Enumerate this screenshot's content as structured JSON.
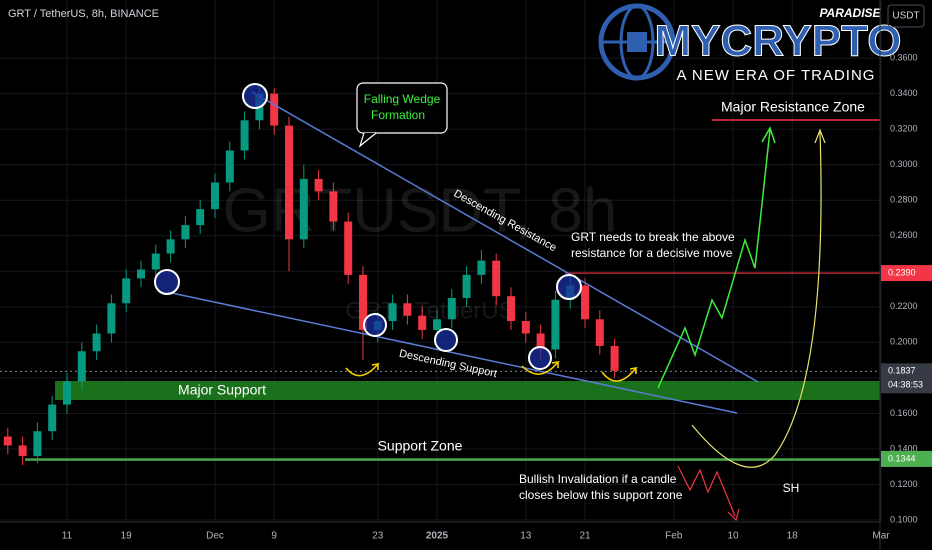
{
  "chart_data": {
    "type": "candlestick",
    "title": "GRT / TetherUS, 8h, BINANCE",
    "currency": "USDT",
    "watermark": "GRTUSDT, 8h",
    "watermark_subtitle": "GRT / TetherUS",
    "categories": [
      null,
      null,
      null,
      null,
      null,
      "11",
      null,
      null,
      null,
      "19",
      null,
      null,
      null,
      null,
      null,
      "Dec",
      null,
      null,
      null,
      "9",
      null,
      null,
      null,
      null,
      null,
      null,
      "23",
      null,
      null,
      null,
      "2025",
      null,
      null,
      null,
      null,
      null,
      "13",
      null,
      null,
      null,
      "21",
      null,
      null,
      null,
      null,
      null,
      "Feb",
      null,
      null,
      null,
      "10",
      null,
      null,
      null,
      "18",
      null,
      null,
      null,
      null,
      null,
      "Mar"
    ],
    "open": [
      null,
      0.147,
      0.142,
      0.136,
      0.15,
      0.165,
      0.178,
      0.195,
      0.205,
      0.222,
      0.236,
      0.241,
      0.25,
      0.258,
      0.266,
      0.275,
      0.29,
      0.308,
      0.325,
      0.34,
      0.322,
      0.258,
      0.292,
      0.285,
      0.268,
      0.238,
      0.207,
      0.212,
      0.222,
      0.215,
      0.207,
      0.213,
      0.225,
      0.238,
      0.246,
      0.226,
      0.212,
      0.205,
      0.196,
      0.224,
      0.232,
      0.213,
      0.198,
      null,
      null,
      null,
      null,
      null,
      null,
      null,
      null,
      null,
      null,
      null,
      null,
      null,
      null,
      null,
      null,
      null,
      null
    ],
    "high": [
      null,
      0.152,
      0.147,
      0.155,
      0.17,
      0.183,
      0.2,
      0.21,
      0.227,
      0.241,
      0.246,
      0.255,
      0.263,
      0.271,
      0.28,
      0.295,
      0.313,
      0.33,
      0.345,
      0.343,
      0.327,
      0.3,
      0.297,
      0.29,
      0.273,
      0.243,
      0.217,
      0.227,
      0.227,
      0.22,
      0.218,
      0.23,
      0.243,
      0.252,
      0.25,
      0.231,
      0.217,
      0.21,
      0.229,
      0.237,
      0.236,
      0.218,
      0.202,
      null,
      null,
      null,
      null,
      null,
      null,
      null,
      null,
      null,
      null,
      null,
      null,
      null,
      null,
      null,
      null,
      null,
      null
    ],
    "low": [
      null,
      0.137,
      0.131,
      0.132,
      0.145,
      0.16,
      0.173,
      0.19,
      0.2,
      0.217,
      0.231,
      0.236,
      0.245,
      0.253,
      0.261,
      0.27,
      0.285,
      0.303,
      0.32,
      0.317,
      0.24,
      0.253,
      0.28,
      0.263,
      0.233,
      0.19,
      0.2,
      0.207,
      0.21,
      0.202,
      0.202,
      0.208,
      0.22,
      0.233,
      0.221,
      0.207,
      0.2,
      0.19,
      0.191,
      0.219,
      0.208,
      0.193,
      0.18,
      null,
      null,
      null,
      null,
      null,
      null,
      null,
      null,
      null,
      null,
      null,
      null,
      null,
      null,
      null,
      null,
      null,
      null
    ],
    "close": [
      null,
      0.142,
      0.136,
      0.15,
      0.165,
      0.178,
      0.195,
      0.205,
      0.222,
      0.236,
      0.241,
      0.25,
      0.258,
      0.266,
      0.275,
      0.29,
      0.308,
      0.325,
      0.34,
      0.322,
      0.258,
      0.292,
      0.285,
      0.268,
      0.238,
      0.207,
      0.212,
      0.222,
      0.215,
      0.207,
      0.213,
      0.225,
      0.238,
      0.246,
      0.226,
      0.212,
      0.205,
      0.196,
      0.224,
      0.232,
      0.213,
      0.198,
      0.184,
      null,
      null,
      null,
      null,
      null,
      null,
      null,
      null,
      null,
      null,
      null,
      null,
      null,
      null,
      null,
      null,
      null,
      null
    ],
    "up_color": "#089981",
    "down_color": "#f23645",
    "ylim": [
      0.0989,
      0.3927
    ],
    "yticks": [
      {
        "value": 0.1,
        "label": "0.1000"
      },
      {
        "value": 0.12,
        "label": "0.1200"
      },
      {
        "value": 0.14,
        "label": "0.1400"
      },
      {
        "value": 0.16,
        "label": "0.1600"
      },
      {
        "value": 0.18,
        "label": "0.1800"
      },
      {
        "value": 0.2,
        "label": "0.2000"
      },
      {
        "value": 0.22,
        "label": "0.2200"
      },
      {
        "value": 0.24,
        "label": "0.2400"
      },
      {
        "value": 0.26,
        "label": "0.2600"
      },
      {
        "value": 0.28,
        "label": "0.2800"
      },
      {
        "value": 0.3,
        "label": "0.3000"
      },
      {
        "value": 0.32,
        "label": "0.3200"
      },
      {
        "value": 0.34,
        "label": "0.3400"
      },
      {
        "value": 0.36,
        "label": "0.3600"
      }
    ],
    "grid": true,
    "levels": [
      {
        "value": 0.239,
        "label": "0.2390",
        "color": "#f23645"
      },
      {
        "value": 0.1344,
        "label": "0.1344",
        "color": "#4caf50"
      },
      {
        "value": 0.1837,
        "label": "0.1837",
        "color": "#363a45"
      }
    ],
    "countdown": "04:38:53",
    "annotations": {
      "falling_wedge": [
        "Falling Wedge",
        "Formation"
      ],
      "descending_resistance": "Descending Resistance",
      "descending_support": "Descending Support",
      "major_support": "Major Support",
      "support_zone": "Support Zone",
      "major_resistance": "Major Resistance Zone",
      "breakout_note": [
        "GRT needs to break the above",
        "resistance for a decisive move"
      ],
      "invalidation_note": [
        "Bullish Invalidation if a candle",
        "closes below this support zone"
      ],
      "sh": "SH"
    }
  },
  "logo": {
    "name": "MYCRYPTO",
    "tag": "PARADISE",
    "slogan": "A NEW ERA OF TRADING"
  }
}
